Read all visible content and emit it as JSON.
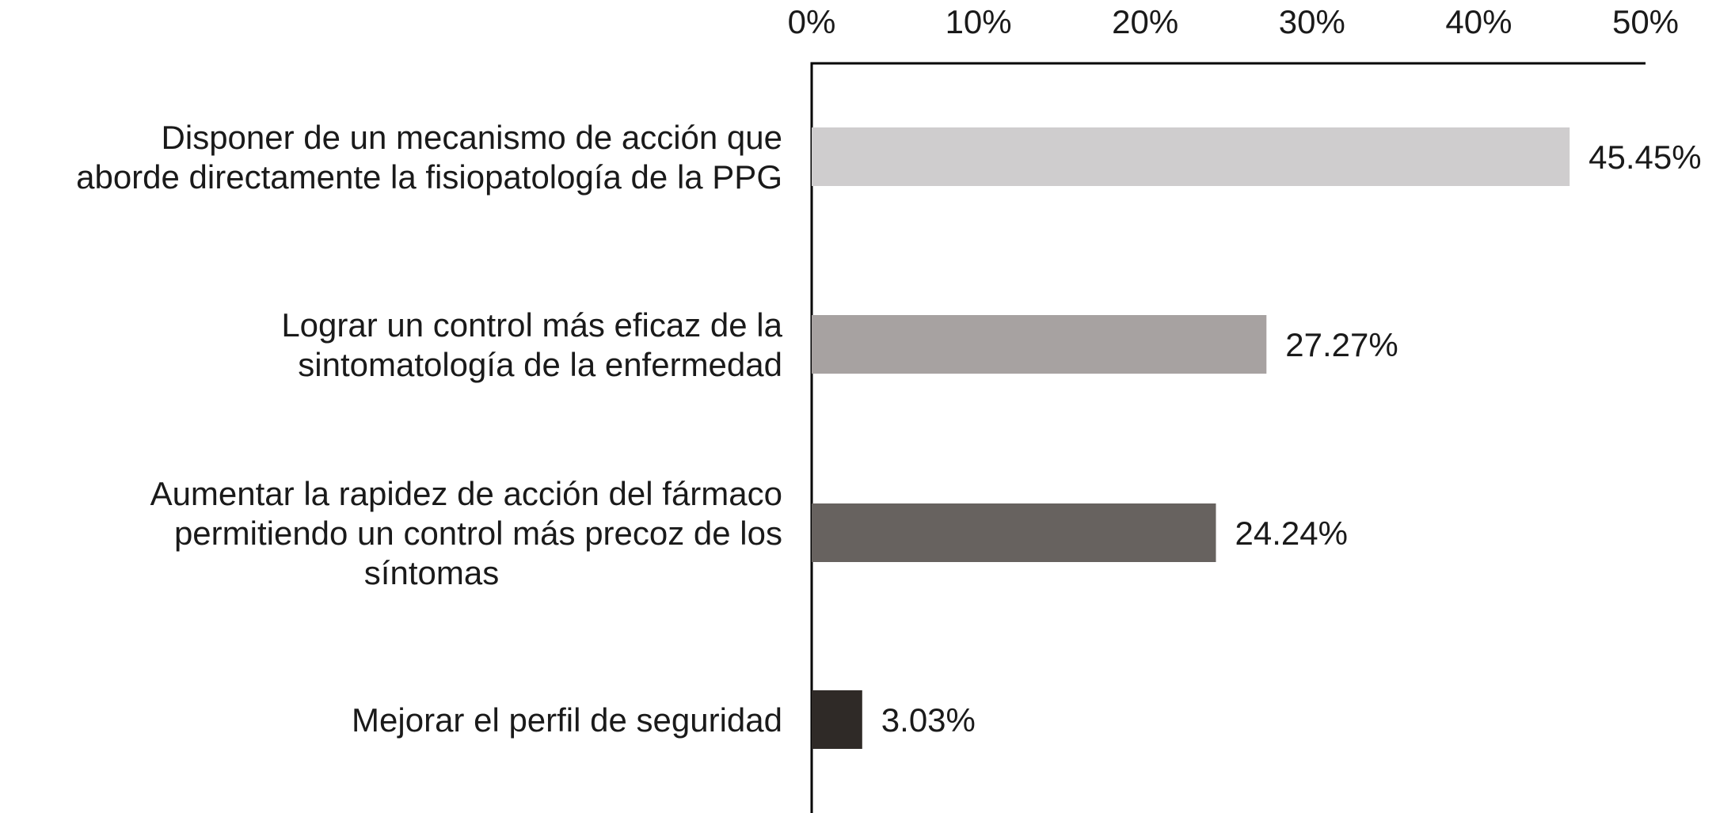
{
  "chart_data": {
    "type": "bar",
    "orientation": "horizontal",
    "categories": [
      [
        "Disponer de un mecanismo de acción que",
        "aborde directamente la fisiopatología de la PPG"
      ],
      [
        "Lograr un control más eficaz de la",
        "sintomatología de la enfermedad"
      ],
      [
        "Aumentar la rapidez de acción del fármaco",
        "permitiendo un control más precoz de los",
        "síntomas"
      ],
      [
        "Mejorar el perfil de seguridad"
      ]
    ],
    "values": [
      45.45,
      27.27,
      24.24,
      3.03
    ],
    "value_labels": [
      "45.45%",
      "27.27%",
      "24.24%",
      "3.03%"
    ],
    "bar_colors": [
      "#cfcdce",
      "#a7a2a1",
      "#67625f",
      "#2f2a27"
    ],
    "xlim": [
      0,
      50
    ],
    "x_ticks": [
      0,
      10,
      20,
      30,
      40,
      50
    ],
    "x_tick_labels": [
      "0%",
      "10%",
      "20%",
      "30%",
      "40%",
      "50%"
    ],
    "x_axis_position": "top",
    "grid": false,
    "legend": "none",
    "title": "",
    "xlabel": "",
    "ylabel": ""
  }
}
